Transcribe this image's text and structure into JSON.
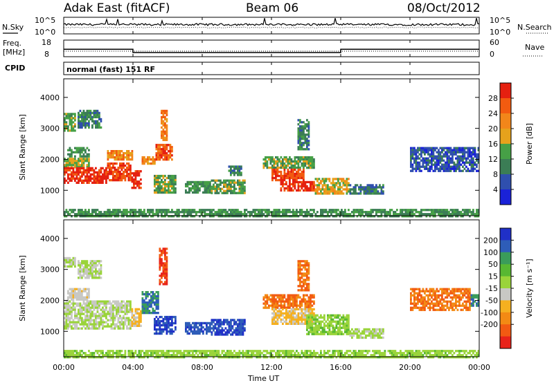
{
  "header": {
    "station": "Adak East (fitACF)",
    "beam": "Beam 06",
    "date": "08/Oct/2012"
  },
  "noise_panel": {
    "left_label": "N.Sky",
    "right_label": "N.Search",
    "left_ticks": [
      "10^5",
      "10^0"
    ],
    "right_ticks": [
      "10^5",
      "10^0"
    ]
  },
  "freq_panel": {
    "left_label_1": "Freq.",
    "left_label_2": "[MHz]",
    "right_label": "Nave",
    "left_ticks": [
      "18",
      "8"
    ],
    "right_ticks": [
      "60",
      "0"
    ],
    "freq_steps": [
      {
        "t0": 0,
        "t1": 4,
        "value": 12.5
      },
      {
        "t0": 4,
        "t1": 16,
        "value": 10.5
      },
      {
        "t0": 16,
        "t1": 24,
        "value": 12.5
      }
    ],
    "nave_level": 20
  },
  "cpid": {
    "label": "CPID",
    "mode": "normal (fast) 151 RF"
  },
  "time_axis": {
    "label": "Time UT",
    "ticks": [
      "00:00",
      "04:00",
      "08:00",
      "12:00",
      "16:00",
      "20:00",
      "00:00"
    ]
  },
  "range_axis": {
    "label": "Slant Range [km]",
    "ticks": [
      "1000",
      "2000",
      "3000",
      "4000"
    ]
  },
  "colors": {
    "power": [
      "#1a22d8",
      "#2f4fae",
      "#3b7d55",
      "#46a046",
      "#e6a21c",
      "#f2861a",
      "#f25b10",
      "#e52010"
    ],
    "velocity": [
      "#e8231a",
      "#f25a12",
      "#f38a14",
      "#f5b020",
      "#c8c8c4",
      "#9ad43a",
      "#58b832",
      "#3a9c5a",
      "#2e5db8",
      "#2030c8"
    ]
  },
  "chart_data": [
    {
      "type": "heatmap",
      "title": "",
      "xlabel": "Time UT",
      "ylabel": "Slant Range [km]",
      "xlim": [
        0,
        24
      ],
      "ylim": [
        180,
        4600
      ],
      "colorbar": {
        "label": "Power [dB]",
        "ticks": [
          "4",
          "8",
          "12",
          "16",
          "20",
          "24",
          "28"
        ],
        "range": [
          0,
          32
        ]
      },
      "regions": [
        {
          "t0": 0.0,
          "t1": 0.7,
          "r0": 2900,
          "r1": 3500,
          "level": 14
        },
        {
          "t0": 0.8,
          "t1": 2.2,
          "r0": 3000,
          "r1": 3600,
          "level": 10
        },
        {
          "t0": 0.2,
          "t1": 1.5,
          "r0": 2100,
          "r1": 2400,
          "level": 12
        },
        {
          "t0": 0.0,
          "t1": 1.5,
          "r0": 1750,
          "r1": 2050,
          "level": 16
        },
        {
          "t0": 0.0,
          "t1": 2.5,
          "r0": 1250,
          "r1": 1750,
          "level": 30
        },
        {
          "t0": 2.5,
          "t1": 3.9,
          "r0": 1300,
          "r1": 1900,
          "level": 28
        },
        {
          "t0": 3.9,
          "t1": 4.5,
          "r0": 1050,
          "r1": 1650,
          "level": 30
        },
        {
          "t0": 2.5,
          "t1": 4.0,
          "r0": 2000,
          "r1": 2300,
          "level": 22
        },
        {
          "t0": 4.5,
          "t1": 5.3,
          "r0": 1850,
          "r1": 2100,
          "level": 22
        },
        {
          "t0": 5.3,
          "t1": 6.2,
          "r0": 2000,
          "r1": 2500,
          "level": 26
        },
        {
          "t0": 5.6,
          "t1": 5.9,
          "r0": 2600,
          "r1": 3600,
          "level": 22
        },
        {
          "t0": 5.2,
          "t1": 6.5,
          "r0": 900,
          "r1": 1500,
          "level": 14
        },
        {
          "t0": 7.0,
          "t1": 8.5,
          "r0": 900,
          "r1": 1300,
          "level": 12
        },
        {
          "t0": 8.5,
          "t1": 10.5,
          "r0": 900,
          "r1": 1350,
          "level": 14
        },
        {
          "t0": 9.5,
          "t1": 10.3,
          "r0": 1500,
          "r1": 1800,
          "level": 10
        },
        {
          "t0": 11.5,
          "t1": 14.5,
          "r0": 1750,
          "r1": 2100,
          "level": 14
        },
        {
          "t0": 12.0,
          "t1": 13.8,
          "r0": 1300,
          "r1": 1700,
          "level": 28
        },
        {
          "t0": 12.5,
          "t1": 14.5,
          "r0": 1000,
          "r1": 1300,
          "level": 30
        },
        {
          "t0": 14.5,
          "t1": 16.5,
          "r0": 900,
          "r1": 1400,
          "level": 18
        },
        {
          "t0": 16.5,
          "t1": 18.5,
          "r0": 900,
          "r1": 1200,
          "level": 9
        },
        {
          "t0": 20.0,
          "t1": 24.0,
          "r0": 1600,
          "r1": 2400,
          "level": 6
        },
        {
          "t0": 13.5,
          "t1": 14.2,
          "r0": 2300,
          "r1": 3300,
          "level": 10
        },
        {
          "t0": 0.0,
          "t1": 24.0,
          "r0": 180,
          "r1": 400,
          "level": 12
        }
      ]
    },
    {
      "type": "heatmap",
      "title": "",
      "xlabel": "Time UT",
      "ylabel": "Slant Range [km]",
      "xlim": [
        0,
        24
      ],
      "ylim": [
        180,
        4600
      ],
      "colorbar": {
        "label": "Velocity [m s⁻¹]",
        "ticks": [
          "200",
          "100",
          "50",
          "15",
          "-15",
          "-50",
          "-100",
          "-200"
        ],
        "range": [
          -250,
          250
        ]
      },
      "regions": [
        {
          "t0": 0.0,
          "t1": 0.7,
          "r0": 3100,
          "r1": 3400,
          "level": 0
        },
        {
          "t0": 0.8,
          "t1": 2.2,
          "r0": 2700,
          "r1": 3300,
          "level": -5
        },
        {
          "t0": 0.2,
          "t1": 1.5,
          "r0": 2000,
          "r1": 2400,
          "level": -30
        },
        {
          "t0": 0.0,
          "t1": 3.9,
          "r0": 1100,
          "r1": 2000,
          "level": 0
        },
        {
          "t0": 3.9,
          "t1": 4.5,
          "r0": 1150,
          "r1": 1750,
          "level": -60
        },
        {
          "t0": 4.5,
          "t1": 5.5,
          "r0": 1600,
          "r1": 2300,
          "level": 150
        },
        {
          "t0": 5.2,
          "t1": 6.5,
          "r0": 900,
          "r1": 1500,
          "level": 200
        },
        {
          "t0": 5.5,
          "t1": 6.0,
          "r0": 2500,
          "r1": 3700,
          "level": -200
        },
        {
          "t0": 7.0,
          "t1": 8.5,
          "r0": 900,
          "r1": 1300,
          "level": 180
        },
        {
          "t0": 8.5,
          "t1": 10.5,
          "r0": 900,
          "r1": 1400,
          "level": 200
        },
        {
          "t0": 11.5,
          "t1": 14.5,
          "r0": 1750,
          "r1": 2200,
          "level": -150
        },
        {
          "t0": 12.0,
          "t1": 14.5,
          "r0": 1250,
          "r1": 1750,
          "level": -60
        },
        {
          "t0": 14.0,
          "t1": 16.5,
          "r0": 900,
          "r1": 1550,
          "level": 40
        },
        {
          "t0": 16.5,
          "t1": 18.5,
          "r0": 800,
          "r1": 1100,
          "level": 10
        },
        {
          "t0": 20.0,
          "t1": 23.5,
          "r0": 1700,
          "r1": 2400,
          "level": -150
        },
        {
          "t0": 23.5,
          "t1": 24.0,
          "r0": 1800,
          "r1": 2200,
          "level": 150
        },
        {
          "t0": 13.5,
          "t1": 14.2,
          "r0": 2300,
          "r1": 3300,
          "level": -150
        },
        {
          "t0": 0.0,
          "t1": 24.0,
          "r0": 180,
          "r1": 400,
          "level": 30
        }
      ]
    }
  ]
}
